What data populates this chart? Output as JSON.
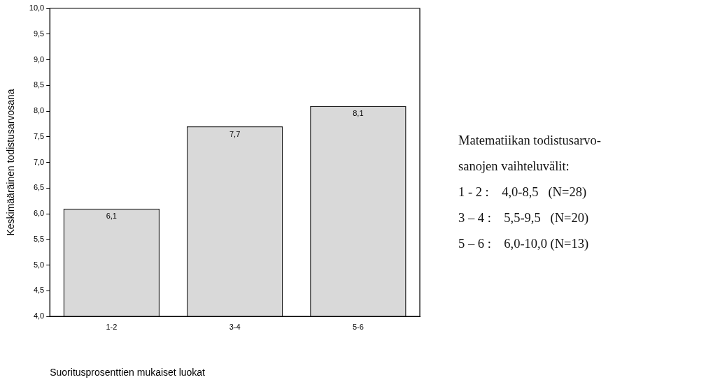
{
  "chart_data": {
    "type": "bar",
    "xlabel": "Suoritusprosenttien mukaiset luokat",
    "ylabel": "Keskimääräinen todistusarvosana",
    "categories": [
      "1-2",
      "3-4",
      "5-6"
    ],
    "values": [
      6.1,
      7.7,
      8.1
    ],
    "color": "#d9d9d9",
    "value_labels": [
      "6,1",
      "7,7",
      "8,1"
    ],
    "ylim": [
      4,
      10
    ],
    "yticks": [
      {
        "value": 4,
        "label": "4,0"
      },
      {
        "value": 4.5,
        "label": "4,5"
      },
      {
        "value": 5,
        "label": "5,0"
      },
      {
        "value": 5.5,
        "label": "5,5"
      },
      {
        "value": 6,
        "label": "6,0"
      },
      {
        "value": 6.5,
        "label": "6,5"
      },
      {
        "value": 7,
        "label": "7,0"
      },
      {
        "value": 7.5,
        "label": "7,5"
      },
      {
        "value": 8,
        "label": "8,0"
      },
      {
        "value": 8.5,
        "label": "8,5"
      },
      {
        "value": 9,
        "label": "9,0"
      },
      {
        "value": 9.5,
        "label": "9,5"
      },
      {
        "value": 10,
        "label": "10,0"
      }
    ],
    "grid": false,
    "legend": false,
    "annotations": [
      "Matematiikan todistusarvo-",
      "sanojen vaihteluvälit:",
      "1 - 2 :    4,0-8,5   (N=28)",
      "3 – 4 :    5,5-9,5   (N=20)",
      "5 – 6 :    6,0-10,0 (N=13)"
    ]
  }
}
